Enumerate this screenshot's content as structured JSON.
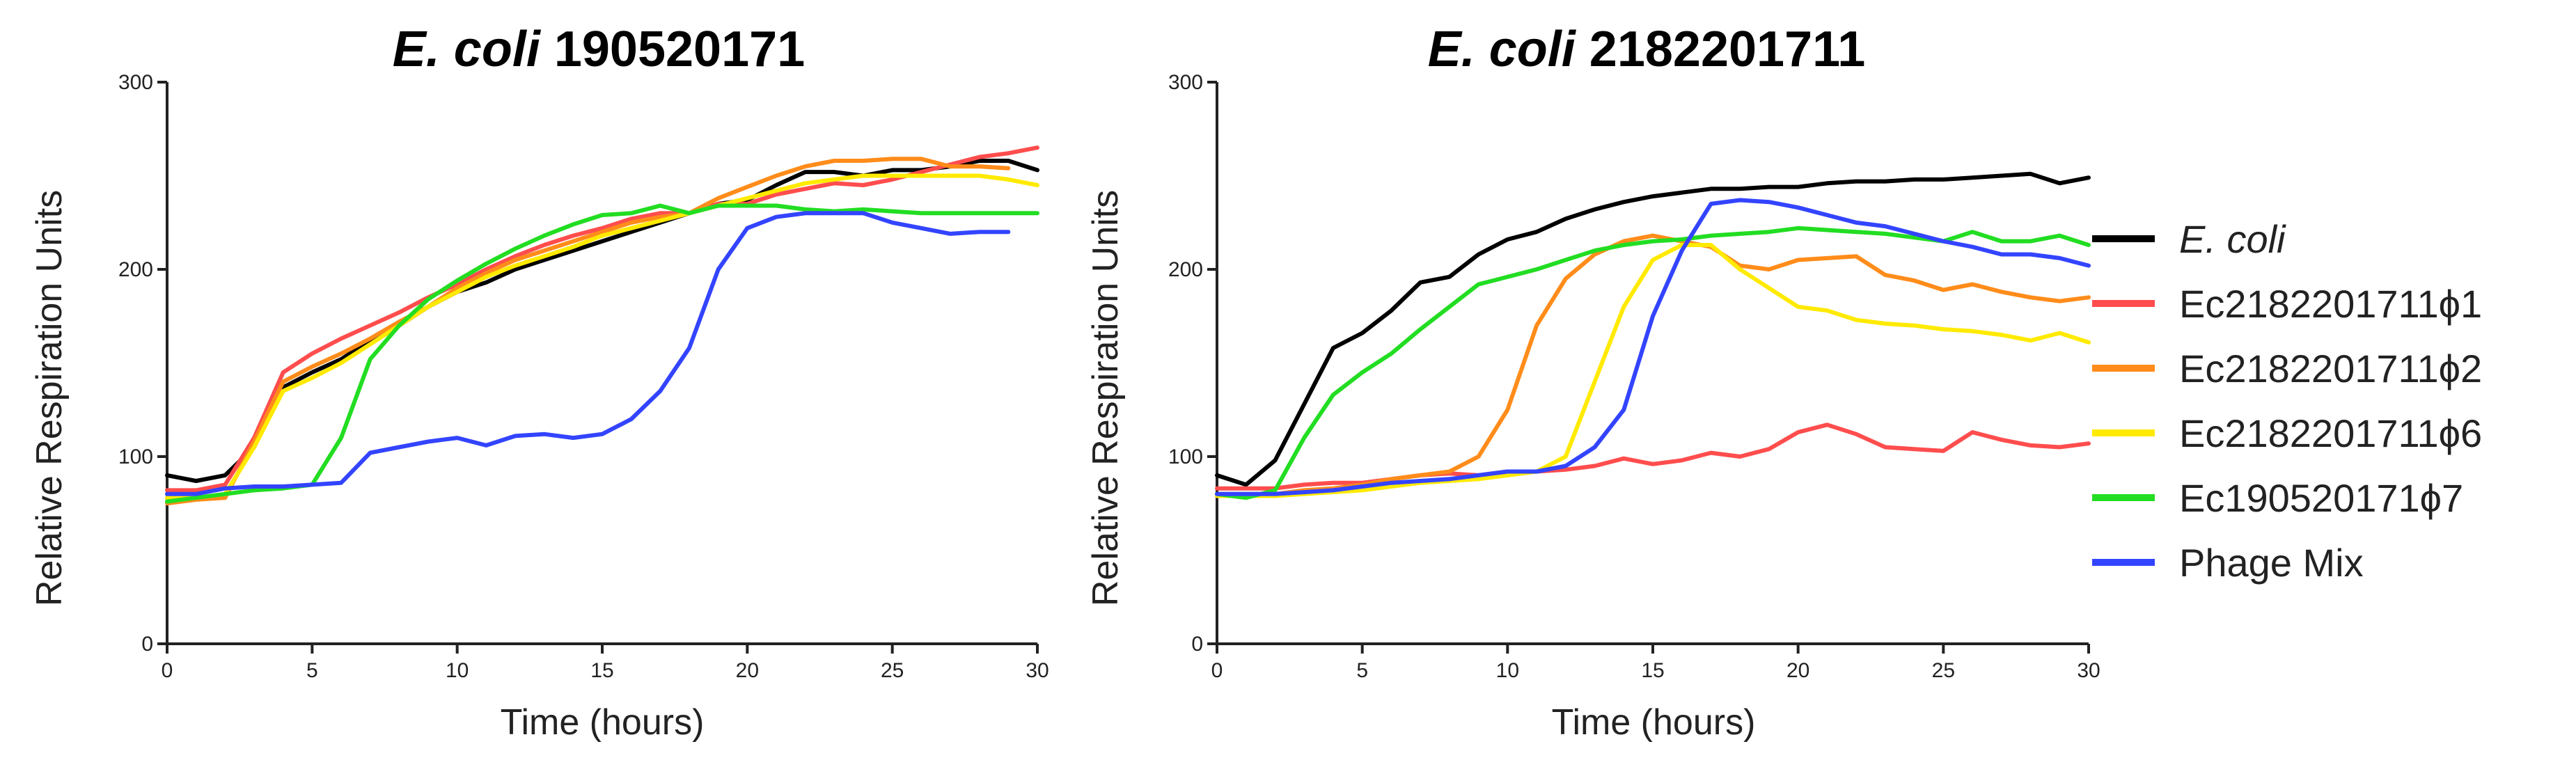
{
  "chart_data": [
    {
      "type": "line",
      "title_italic": "E. coli",
      "title_rest": " 190520171",
      "xlabel": "Time (hours)",
      "ylabel": "Relative Respiration Units",
      "xlim": [
        0,
        30
      ],
      "ylim": [
        0,
        300
      ],
      "xticks": [
        0,
        5,
        10,
        15,
        20,
        25,
        30
      ],
      "yticks": [
        0,
        100,
        200,
        300
      ],
      "series": [
        {
          "name": "E. coli",
          "color": "#000000",
          "x": [
            0,
            1,
            2,
            3,
            4,
            5,
            6,
            7,
            8,
            9,
            10,
            11,
            12,
            13,
            14,
            15,
            16,
            17,
            18,
            19,
            20,
            21,
            22,
            23,
            24,
            25,
            26,
            27,
            28,
            29,
            30
          ],
          "y": [
            90,
            87,
            90,
            105,
            137,
            145,
            152,
            162,
            170,
            180,
            188,
            193,
            200,
            205,
            210,
            215,
            220,
            225,
            230,
            235,
            237,
            245,
            252,
            252,
            250,
            253,
            253,
            255,
            258,
            258,
            253
          ]
        },
        {
          "name": "Ec2182201711ϕ1",
          "color": "#ff4d4d",
          "x": [
            0,
            1,
            2,
            3,
            4,
            5,
            6,
            7,
            8,
            9,
            10,
            11,
            12,
            13,
            14,
            15,
            16,
            17,
            18,
            19,
            20,
            21,
            22,
            23,
            24,
            25,
            26,
            27,
            28,
            29,
            30
          ],
          "y": [
            82,
            82,
            85,
            110,
            145,
            155,
            163,
            170,
            177,
            185,
            192,
            200,
            207,
            213,
            218,
            222,
            227,
            230,
            230,
            235,
            235,
            240,
            243,
            246,
            245,
            248,
            252,
            256,
            260,
            262,
            265
          ]
        },
        {
          "name": "Ec2182201711ϕ2",
          "color": "#ff8c1a",
          "x": [
            0,
            1,
            2,
            3,
            4,
            5,
            6,
            7,
            8,
            9,
            10,
            11,
            12,
            13,
            14,
            15,
            16,
            17,
            18,
            19,
            20,
            21,
            22,
            23,
            24,
            25,
            26,
            27,
            28,
            29
          ],
          "y": [
            75,
            77,
            78,
            108,
            140,
            148,
            155,
            163,
            172,
            180,
            190,
            198,
            205,
            210,
            215,
            220,
            225,
            228,
            230,
            238,
            244,
            250,
            255,
            258,
            258,
            259,
            259,
            255,
            255,
            254
          ]
        },
        {
          "name": "Ec2182201711ϕ6",
          "color": "#ffea00",
          "x": [
            0,
            1,
            2,
            3,
            4,
            5,
            6,
            7,
            8,
            9,
            10,
            11,
            12,
            13,
            14,
            15,
            16,
            17,
            18,
            19,
            20,
            21,
            22,
            23,
            24,
            25,
            26,
            27,
            28,
            29,
            30
          ],
          "y": [
            78,
            78,
            80,
            105,
            135,
            142,
            150,
            160,
            170,
            180,
            188,
            196,
            202,
            207,
            212,
            218,
            222,
            226,
            230,
            234,
            238,
            242,
            246,
            248,
            250,
            250,
            250,
            250,
            250,
            248,
            245
          ]
        },
        {
          "name": "Ec190520171ϕ7",
          "color": "#22dd22",
          "x": [
            0,
            1,
            2,
            3,
            4,
            5,
            6,
            7,
            8,
            9,
            10,
            11,
            12,
            13,
            14,
            15,
            16,
            17,
            18,
            19,
            20,
            21,
            22,
            23,
            24,
            25,
            26,
            27,
            28,
            29,
            30
          ],
          "y": [
            76,
            78,
            80,
            82,
            83,
            85,
            110,
            152,
            170,
            184,
            194,
            203,
            211,
            218,
            224,
            229,
            230,
            234,
            230,
            234,
            234,
            234,
            232,
            231,
            232,
            231,
            230,
            230,
            230,
            230,
            230
          ]
        },
        {
          "name": "Phage Mix",
          "color": "#3344ff",
          "x": [
            0,
            1,
            2,
            3,
            4,
            5,
            6,
            7,
            8,
            9,
            10,
            11,
            12,
            13,
            14,
            15,
            16,
            17,
            18,
            19,
            20,
            21,
            22,
            23,
            24,
            25,
            26,
            27,
            28,
            29
          ],
          "y": [
            80,
            80,
            83,
            84,
            84,
            85,
            86,
            102,
            105,
            108,
            110,
            106,
            111,
            112,
            110,
            112,
            120,
            135,
            158,
            200,
            222,
            228,
            230,
            230,
            230,
            225,
            222,
            219,
            220,
            220
          ]
        }
      ]
    },
    {
      "type": "line",
      "title_italic": "E. coli",
      "title_rest": " 2182201711",
      "xlabel": "Time (hours)",
      "ylabel": "Relative Respiration Units",
      "xlim": [
        0,
        30
      ],
      "ylim": [
        0,
        300
      ],
      "xticks": [
        0,
        5,
        10,
        15,
        20,
        25,
        30
      ],
      "yticks": [
        0,
        100,
        200,
        300
      ],
      "series": [
        {
          "name": "E. coli",
          "color": "#000000",
          "x": [
            0,
            1,
            2,
            3,
            4,
            5,
            6,
            7,
            8,
            9,
            10,
            11,
            12,
            13,
            14,
            15,
            16,
            17,
            18,
            19,
            20,
            21,
            22,
            23,
            24,
            25,
            26,
            27,
            28,
            29,
            30
          ],
          "y": [
            90,
            85,
            98,
            128,
            158,
            166,
            178,
            193,
            196,
            208,
            216,
            220,
            227,
            232,
            236,
            239,
            241,
            243,
            243,
            244,
            244,
            246,
            247,
            247,
            248,
            248,
            249,
            250,
            251,
            246,
            249
          ]
        },
        {
          "name": "Ec2182201711ϕ1",
          "color": "#ff4d4d",
          "x": [
            0,
            1,
            2,
            3,
            4,
            5,
            6,
            7,
            8,
            9,
            10,
            11,
            12,
            13,
            14,
            15,
            16,
            17,
            18,
            19,
            20,
            21,
            22,
            23,
            24,
            25,
            26,
            27,
            28,
            29,
            30
          ],
          "y": [
            83,
            83,
            83,
            85,
            86,
            86,
            88,
            90,
            91,
            90,
            92,
            92,
            93,
            95,
            99,
            96,
            98,
            102,
            100,
            104,
            113,
            117,
            112,
            105,
            104,
            103,
            113,
            109,
            106,
            105,
            107
          ]
        },
        {
          "name": "Ec2182201711ϕ2",
          "color": "#ff8c1a",
          "x": [
            0,
            1,
            2,
            3,
            4,
            5,
            6,
            7,
            8,
            9,
            10,
            11,
            12,
            13,
            14,
            15,
            16,
            17,
            18,
            19,
            20,
            21,
            22,
            23,
            24,
            25,
            26,
            27,
            28,
            29,
            30
          ],
          "y": [
            80,
            80,
            80,
            82,
            83,
            85,
            88,
            90,
            92,
            100,
            125,
            170,
            195,
            208,
            215,
            218,
            215,
            212,
            202,
            200,
            205,
            206,
            207,
            197,
            194,
            189,
            192,
            188,
            185,
            183,
            185
          ]
        },
        {
          "name": "Ec2182201711ϕ6",
          "color": "#ffea00",
          "x": [
            0,
            1,
            2,
            3,
            4,
            5,
            6,
            7,
            8,
            9,
            10,
            11,
            12,
            13,
            14,
            15,
            16,
            17,
            18,
            19,
            20,
            21,
            22,
            23,
            24,
            25,
            26,
            27,
            28,
            29,
            30
          ],
          "y": [
            79,
            79,
            79,
            80,
            81,
            82,
            84,
            86,
            87,
            88,
            90,
            92,
            100,
            140,
            180,
            205,
            213,
            213,
            200,
            190,
            180,
            178,
            173,
            171,
            170,
            168,
            167,
            165,
            162,
            166,
            161
          ]
        },
        {
          "name": "Ec190520171ϕ7",
          "color": "#22dd22",
          "x": [
            0,
            1,
            2,
            3,
            4,
            5,
            6,
            7,
            8,
            9,
            10,
            11,
            12,
            13,
            14,
            15,
            16,
            17,
            18,
            19,
            20,
            21,
            22,
            23,
            24,
            25,
            26,
            27,
            28,
            29,
            30
          ],
          "y": [
            80,
            78,
            82,
            110,
            133,
            145,
            155,
            168,
            180,
            192,
            196,
            200,
            205,
            210,
            213,
            215,
            216,
            218,
            219,
            220,
            222,
            221,
            220,
            219,
            217,
            215,
            220,
            215,
            215,
            218,
            213
          ]
        },
        {
          "name": "Phage Mix",
          "color": "#3344ff",
          "x": [
            0,
            1,
            2,
            3,
            4,
            5,
            6,
            7,
            8,
            9,
            10,
            11,
            12,
            13,
            14,
            15,
            16,
            17,
            18,
            19,
            20,
            21,
            22,
            23,
            24,
            25,
            26,
            27,
            28,
            29,
            30
          ],
          "y": [
            80,
            80,
            80,
            81,
            82,
            84,
            86,
            87,
            88,
            90,
            92,
            92,
            95,
            105,
            125,
            175,
            210,
            235,
            237,
            236,
            233,
            229,
            225,
            223,
            219,
            215,
            212,
            208,
            208,
            206,
            202
          ]
        }
      ]
    }
  ],
  "legend": {
    "items": [
      {
        "italic": true,
        "label": "E. coli",
        "color": "#000000"
      },
      {
        "italic": false,
        "label": "Ec2182201711ϕ1",
        "color": "#ff4d4d"
      },
      {
        "italic": false,
        "label": "Ec2182201711ϕ2",
        "color": "#ff8c1a"
      },
      {
        "italic": false,
        "label": "Ec2182201711ϕ6",
        "color": "#ffea00"
      },
      {
        "italic": false,
        "label": "Ec190520171ϕ7",
        "color": "#22dd22"
      },
      {
        "italic": false,
        "label": "Phage Mix",
        "color": "#3344ff"
      }
    ]
  }
}
